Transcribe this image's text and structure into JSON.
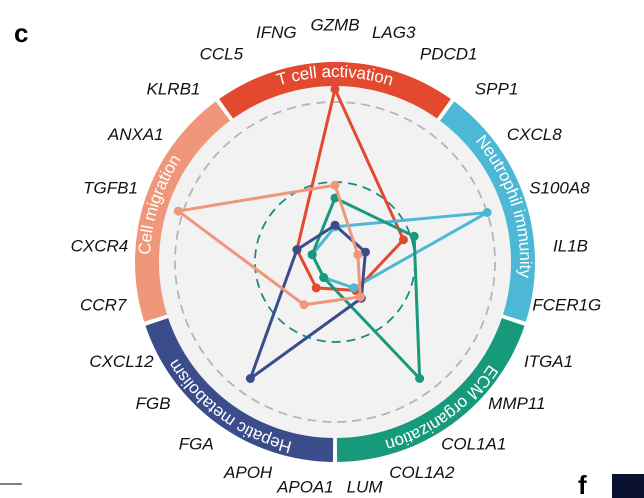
{
  "panel_labels": [
    "c",
    "f"
  ],
  "chart_data": {
    "type": "radar",
    "categories": [
      "T cell activation",
      "Neutrophil immunity",
      "ECM organization",
      "Hepatic metabolism",
      "Cell migration"
    ],
    "genes": [
      "GZMB",
      "LAG3",
      "PDCD1",
      "SPP1",
      "CXCL8",
      "S100A8",
      "IL1B",
      "FCER1G",
      "ITGA1",
      "MMP11",
      "COL1A1",
      "COL1A2",
      "LUM",
      "APOA1",
      "APOH",
      "FGA",
      "FGB",
      "CXCL12",
      "CCR7",
      "CXCR4",
      "TGFB1",
      "ANXA1",
      "KLRB1",
      "CCL5",
      "IFNG"
    ],
    "series": [
      {
        "name": "T cell activation",
        "color": "#e2492f",
        "values": [
          1.08,
          0.45,
          0.22,
          0.2,
          0.25
        ]
      },
      {
        "name": "Neutrophil immunity",
        "color": "#4cb8d6",
        "values": [
          0.22,
          1.0,
          0.2,
          0.12,
          0.15
        ]
      },
      {
        "name": "ECM organization",
        "color": "#17997c",
        "values": [
          0.4,
          0.52,
          0.9,
          0.12,
          0.15
        ]
      },
      {
        "name": "Hepatic metabolism",
        "color": "#3a4d8a",
        "values": [
          0.23,
          0.2,
          0.28,
          0.9,
          0.25
        ]
      },
      {
        "name": "Cell migration",
        "color": "#f0967a",
        "values": [
          0.48,
          0.15,
          0.27,
          0.33,
          1.03
        ]
      }
    ],
    "rlim": [
      0,
      1
    ],
    "rticks": [
      0.5,
      1
    ],
    "grid": true
  }
}
